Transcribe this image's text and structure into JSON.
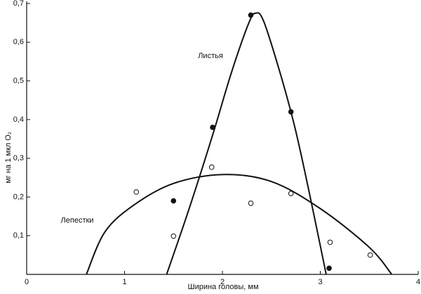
{
  "chart_data": {
    "type": "scatter",
    "x_label": "Ширина головы, мм",
    "y_label": "мг на 1 мкл O₂",
    "xlim": [
      0,
      4
    ],
    "xticks": [
      0,
      1,
      2,
      3,
      4
    ],
    "ylim": [
      0,
      0.7
    ],
    "yticks": [
      {
        "value": 0.1,
        "label": "0,1"
      },
      {
        "value": 0.2,
        "label": "0,2"
      },
      {
        "value": 0.3,
        "label": "0,3"
      },
      {
        "value": 0.4,
        "label": "0,4"
      },
      {
        "value": 0.5,
        "label": "0,5"
      },
      {
        "value": 0.6,
        "label": "0,6"
      },
      {
        "value": 0.7,
        "label": "0,7"
      }
    ],
    "series": [
      {
        "name": "Листья",
        "color": "#111111",
        "filled": true,
        "x": [
          1.5,
          1.9,
          2.29,
          2.7,
          3.09
        ],
        "values": [
          0.19,
          0.38,
          0.67,
          0.42,
          0.016
        ],
        "curve_x": [
          1.43,
          1.66,
          1.9,
          2.09,
          2.27,
          2.34,
          2.42,
          2.59,
          2.74,
          2.88,
          3.06
        ],
        "curve_y": [
          0,
          0.17,
          0.36,
          0.52,
          0.65,
          0.675,
          0.655,
          0.52,
          0.38,
          0.22,
          0
        ]
      },
      {
        "name": "Лепестки",
        "color": "#111111",
        "filled": false,
        "x": [
          1.12,
          1.5,
          1.89,
          2.29,
          2.7,
          3.1,
          3.51
        ],
        "values": [
          0.213,
          0.099,
          0.277,
          0.184,
          0.209,
          0.083,
          0.05
        ],
        "curve_x": [
          0.61,
          0.8,
          1.1,
          1.5,
          2.0,
          2.5,
          3.0,
          3.5,
          3.73
        ],
        "curve_y": [
          0,
          0.11,
          0.18,
          0.235,
          0.258,
          0.24,
          0.17,
          0.07,
          0
        ]
      }
    ]
  }
}
